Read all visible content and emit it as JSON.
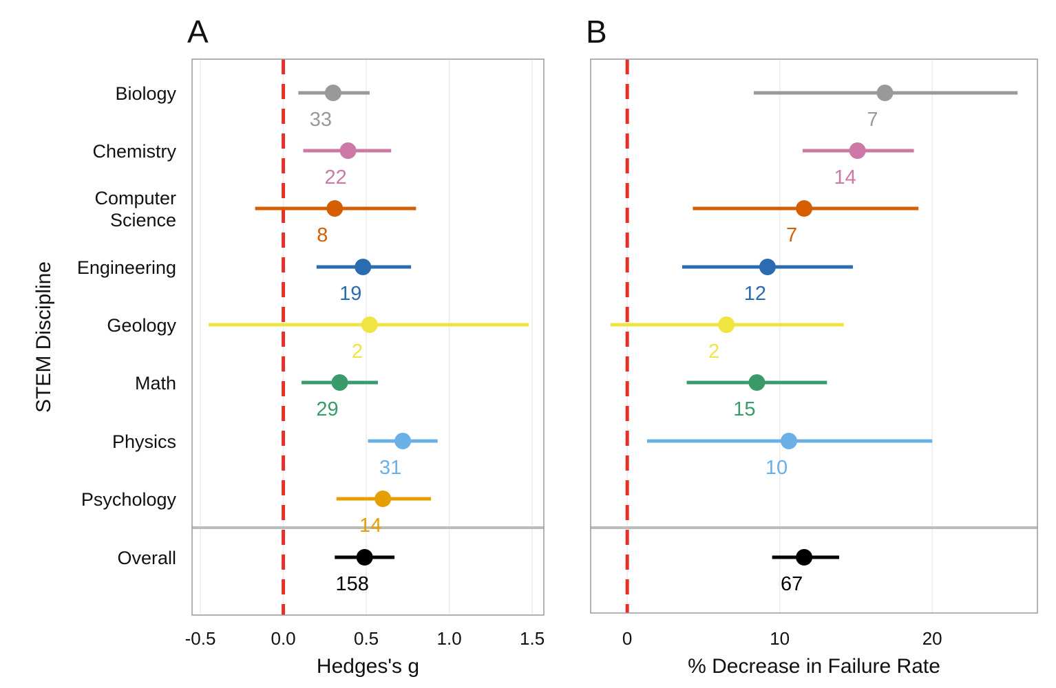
{
  "chart_data": [
    {
      "panel": "A",
      "type": "scatter",
      "subtype": "forest-plot",
      "title": "A",
      "xlabel": "Hedges's g",
      "ylabel": "STEM Discipline",
      "xlim": [
        -0.55,
        1.57
      ],
      "xticks": [
        -0.5,
        0.0,
        0.5,
        1.0,
        1.5
      ],
      "xtick_labels": [
        "-0.5",
        "0.0",
        "0.5",
        "1.0",
        "1.5"
      ],
      "reference_line": 0.0,
      "grid": true,
      "categories": [
        "Biology",
        "Chemistry",
        "Computer Science",
        "Engineering",
        "Geology",
        "Math",
        "Physics",
        "Psychology",
        "Overall"
      ],
      "category_display": [
        [
          "Biology"
        ],
        [
          "Chemistry"
        ],
        [
          "Computer",
          "Science"
        ],
        [
          "Engineering"
        ],
        [
          "Geology"
        ],
        [
          "Math"
        ],
        [
          "Physics"
        ],
        [
          "Psychology"
        ],
        [
          "Overall"
        ]
      ],
      "estimates": [
        0.3,
        0.39,
        0.31,
        0.48,
        0.52,
        0.34,
        0.72,
        0.6,
        0.49
      ],
      "ci_low": [
        0.09,
        0.12,
        -0.17,
        0.2,
        -0.45,
        0.11,
        0.51,
        0.32,
        0.31
      ],
      "ci_high": [
        0.52,
        0.65,
        0.8,
        0.77,
        1.48,
        0.57,
        0.93,
        0.89,
        0.67
      ],
      "n_studies": [
        "33",
        "22",
        "8",
        "19",
        "2",
        "29",
        "31",
        "14",
        "158"
      ]
    },
    {
      "panel": "B",
      "type": "scatter",
      "subtype": "forest-plot",
      "title": "B",
      "xlabel": "% Decrease in Failure Rate",
      "ylabel": "",
      "xlim": [
        -2.4,
        26.9
      ],
      "xticks": [
        0,
        10,
        20
      ],
      "xtick_labels": [
        "0",
        "10",
        "20"
      ],
      "reference_line": 0,
      "grid": true,
      "categories": [
        "Biology",
        "Chemistry",
        "Computer Science",
        "Engineering",
        "Geology",
        "Math",
        "Physics",
        "Psychology",
        "Overall"
      ],
      "estimates": [
        16.9,
        15.1,
        11.6,
        9.2,
        6.5,
        8.5,
        10.6,
        null,
        11.6
      ],
      "ci_low": [
        8.3,
        11.5,
        4.3,
        3.6,
        -1.1,
        3.9,
        1.3,
        null,
        9.5
      ],
      "ci_high": [
        25.6,
        18.8,
        19.1,
        14.8,
        14.2,
        13.1,
        20.0,
        null,
        13.9
      ],
      "n_studies": [
        "7",
        "14",
        "7",
        "12",
        "2",
        "15",
        "10",
        null,
        "67"
      ]
    }
  ],
  "colors": {
    "Biology": "#999999",
    "Chemistry": "#CC79A7",
    "Computer Science": "#D55E00",
    "Engineering": "#2B6CB0",
    "Geology": "#F0E442",
    "Math": "#3A9B6A",
    "Physics": "#6AAFE6",
    "Psychology": "#E69F00",
    "Overall": "#000000",
    "reference_line": "#E8302A",
    "frame": "#999999",
    "grid": "#EBEBEB",
    "separator": "#BBBBBB"
  }
}
